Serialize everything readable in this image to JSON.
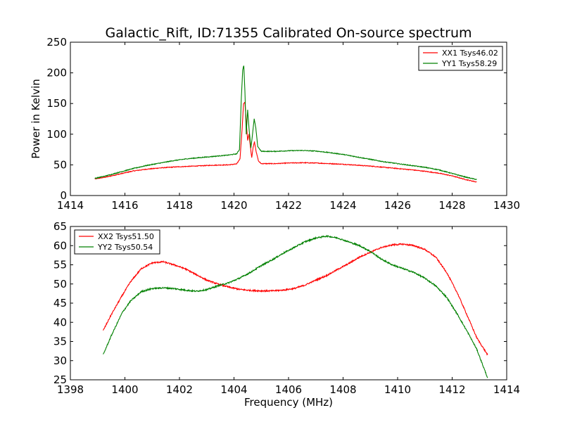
{
  "figure": {
    "title": "Galactic_Rift, ID:71355 Calibrated On-source spectrum",
    "xlabel": "Frequency (MHz)",
    "ylabel": "Power in Kelvin"
  },
  "chart_data": [
    {
      "type": "line",
      "xlabel": "",
      "ylabel": "Power in Kelvin",
      "xlim": [
        1414,
        1430
      ],
      "ylim": [
        0,
        250
      ],
      "xticks": [
        1414,
        1416,
        1418,
        1420,
        1422,
        1424,
        1426,
        1428,
        1430
      ],
      "yticks": [
        0,
        50,
        100,
        150,
        200,
        250
      ],
      "grid": false,
      "legend": {
        "position": "top-right"
      },
      "series": [
        {
          "name": "XX1 Tsys46.02",
          "color": "#ff0000",
          "points": [
            [
              1414.9,
              27
            ],
            [
              1415.3,
              30
            ],
            [
              1415.8,
              35
            ],
            [
              1416.3,
              40
            ],
            [
              1416.8,
              43
            ],
            [
              1417.3,
              45
            ],
            [
              1417.8,
              46.5
            ],
            [
              1418.3,
              47.5
            ],
            [
              1418.8,
              48.5
            ],
            [
              1419.3,
              49.5
            ],
            [
              1419.8,
              50
            ],
            [
              1420.1,
              51.5
            ],
            [
              1420.22,
              60
            ],
            [
              1420.3,
              110
            ],
            [
              1420.35,
              150
            ],
            [
              1420.4,
              152
            ],
            [
              1420.45,
              120
            ],
            [
              1420.5,
              90
            ],
            [
              1420.55,
              100
            ],
            [
              1420.6,
              80
            ],
            [
              1420.65,
              62
            ],
            [
              1420.7,
              78
            ],
            [
              1420.75,
              88
            ],
            [
              1420.82,
              70
            ],
            [
              1420.9,
              56
            ],
            [
              1421.0,
              52
            ],
            [
              1421.5,
              52
            ],
            [
              1422.0,
              53
            ],
            [
              1422.5,
              53.5
            ],
            [
              1423.0,
              53
            ],
            [
              1423.5,
              52
            ],
            [
              1424.0,
              51
            ],
            [
              1424.5,
              49.5
            ],
            [
              1425.0,
              48
            ],
            [
              1425.5,
              46
            ],
            [
              1426.0,
              44
            ],
            [
              1426.5,
              42
            ],
            [
              1427.0,
              39.5
            ],
            [
              1427.5,
              36.5
            ],
            [
              1428.0,
              32
            ],
            [
              1428.5,
              26
            ],
            [
              1428.9,
              22
            ]
          ]
        },
        {
          "name": "YY1 Tsys58.29",
          "color": "#008000",
          "points": [
            [
              1414.9,
              28
            ],
            [
              1415.3,
              32
            ],
            [
              1415.8,
              38
            ],
            [
              1416.3,
              44
            ],
            [
              1416.8,
              49
            ],
            [
              1417.3,
              53
            ],
            [
              1417.8,
              57
            ],
            [
              1418.3,
              60
            ],
            [
              1418.8,
              62
            ],
            [
              1419.3,
              64
            ],
            [
              1419.8,
              66
            ],
            [
              1420.1,
              68
            ],
            [
              1420.2,
              75
            ],
            [
              1420.27,
              160
            ],
            [
              1420.32,
              205
            ],
            [
              1420.36,
              212
            ],
            [
              1420.4,
              170
            ],
            [
              1420.45,
              100
            ],
            [
              1420.5,
              140
            ],
            [
              1420.55,
              110
            ],
            [
              1420.62,
              78
            ],
            [
              1420.68,
              100
            ],
            [
              1420.74,
              125
            ],
            [
              1420.8,
              110
            ],
            [
              1420.87,
              80
            ],
            [
              1421.0,
              72
            ],
            [
              1421.5,
              72
            ],
            [
              1422.0,
              73
            ],
            [
              1422.5,
              73.5
            ],
            [
              1423.0,
              72.5
            ],
            [
              1423.5,
              70
            ],
            [
              1424.0,
              67
            ],
            [
              1424.5,
              63
            ],
            [
              1425.0,
              59
            ],
            [
              1425.5,
              55
            ],
            [
              1426.0,
              52
            ],
            [
              1426.5,
              49
            ],
            [
              1427.0,
              46
            ],
            [
              1427.5,
              42
            ],
            [
              1428.0,
              36
            ],
            [
              1428.5,
              30
            ],
            [
              1428.9,
              26
            ]
          ]
        }
      ]
    },
    {
      "type": "line",
      "xlabel": "Frequency (MHz)",
      "ylabel": "",
      "xlim": [
        1398,
        1414
      ],
      "ylim": [
        25,
        65
      ],
      "xticks": [
        1398,
        1400,
        1402,
        1404,
        1406,
        1408,
        1410,
        1412,
        1414
      ],
      "yticks": [
        25,
        30,
        35,
        40,
        45,
        50,
        55,
        60,
        65
      ],
      "grid": false,
      "legend": {
        "position": "top-left"
      },
      "series": [
        {
          "name": "XX2 Tsys51.50",
          "color": "#ff0000",
          "points": [
            [
              1399.2,
              37.8
            ],
            [
              1399.5,
              42
            ],
            [
              1399.9,
              47
            ],
            [
              1400.2,
              50.5
            ],
            [
              1400.6,
              54
            ],
            [
              1401.0,
              55.5
            ],
            [
              1401.4,
              55.8
            ],
            [
              1401.8,
              55
            ],
            [
              1402.2,
              54
            ],
            [
              1402.6,
              52.5
            ],
            [
              1403.0,
              51
            ],
            [
              1403.4,
              50
            ],
            [
              1403.8,
              49.2
            ],
            [
              1404.2,
              48.6
            ],
            [
              1404.6,
              48.3
            ],
            [
              1405.0,
              48.2
            ],
            [
              1405.4,
              48.2
            ],
            [
              1405.8,
              48.4
            ],
            [
              1406.2,
              48.8
            ],
            [
              1406.6,
              49.7
            ],
            [
              1407.0,
              51
            ],
            [
              1407.4,
              52.2
            ],
            [
              1407.8,
              53.8
            ],
            [
              1408.2,
              55.3
            ],
            [
              1408.6,
              57
            ],
            [
              1409.0,
              58.3
            ],
            [
              1409.4,
              59.5
            ],
            [
              1409.8,
              60.2
            ],
            [
              1410.2,
              60.4
            ],
            [
              1410.6,
              60
            ],
            [
              1411.0,
              59
            ],
            [
              1411.4,
              57
            ],
            [
              1411.8,
              53
            ],
            [
              1412.2,
              47.5
            ],
            [
              1412.6,
              41
            ],
            [
              1412.9,
              36
            ],
            [
              1413.3,
              31.5
            ]
          ]
        },
        {
          "name": "YY2 Tsys50.54",
          "color": "#008000",
          "points": [
            [
              1399.2,
              31.5
            ],
            [
              1399.5,
              36.5
            ],
            [
              1399.9,
              42.5
            ],
            [
              1400.2,
              45.5
            ],
            [
              1400.6,
              48
            ],
            [
              1401.0,
              48.8
            ],
            [
              1401.4,
              49
            ],
            [
              1401.8,
              48.8
            ],
            [
              1402.2,
              48.4
            ],
            [
              1402.6,
              48.1
            ],
            [
              1403.0,
              48.5
            ],
            [
              1403.4,
              49.5
            ],
            [
              1403.8,
              50.3
            ],
            [
              1404.2,
              51.5
            ],
            [
              1404.6,
              53
            ],
            [
              1405.0,
              54.8
            ],
            [
              1405.4,
              56.3
            ],
            [
              1405.8,
              58
            ],
            [
              1406.2,
              59.5
            ],
            [
              1406.6,
              61
            ],
            [
              1407.0,
              62
            ],
            [
              1407.4,
              62.5
            ],
            [
              1407.8,
              62
            ],
            [
              1408.2,
              61
            ],
            [
              1408.6,
              60
            ],
            [
              1409.0,
              58.5
            ],
            [
              1409.4,
              56.5
            ],
            [
              1409.8,
              55
            ],
            [
              1410.2,
              54
            ],
            [
              1410.6,
              53
            ],
            [
              1411.0,
              51.5
            ],
            [
              1411.4,
              49.5
            ],
            [
              1411.8,
              46.5
            ],
            [
              1412.2,
              42
            ],
            [
              1412.6,
              37
            ],
            [
              1412.9,
              33
            ],
            [
              1413.3,
              25.5
            ]
          ]
        }
      ]
    }
  ]
}
